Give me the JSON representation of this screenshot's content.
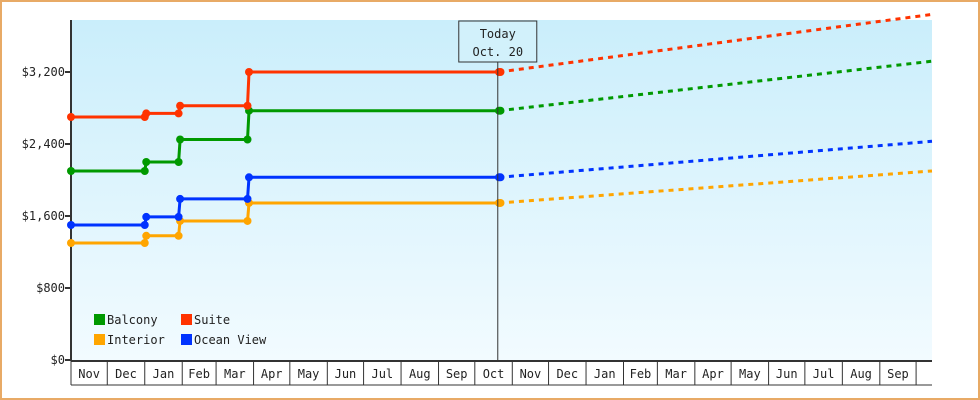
{
  "chart_data": {
    "type": "line",
    "title": "",
    "xlabel": "",
    "ylabel": "",
    "ylim": [
      0,
      3750
    ],
    "y_ticks": [
      "$0",
      "$800",
      "$1,600",
      "$2,400",
      "$3,200"
    ],
    "y_tick_values": [
      0,
      800,
      1600,
      2400,
      3200
    ],
    "x_tick_labels": [
      "Nov",
      "Dec",
      "Jan",
      "Feb",
      "Mar",
      "Apr",
      "May",
      "Jun",
      "Jul",
      "Aug",
      "Sep",
      "Oct",
      "Nov",
      "Dec",
      "Jan",
      "Feb",
      "Mar",
      "Apr",
      "May",
      "Jun",
      "Jul",
      "Aug",
      "Sep"
    ],
    "x_start": "Nov 1",
    "grid": false,
    "legend_position": "bottom-left",
    "today_marker": {
      "line1": "Today",
      "line2": "Oct. 20",
      "date": "Oct 20"
    },
    "series": [
      {
        "name": "Balcony",
        "color": "#009900",
        "points": [
          [
            "Nov 1",
            2100
          ],
          [
            "Jan 1",
            2200
          ],
          [
            "Jan 29",
            2450
          ],
          [
            "Mar 26",
            2770
          ],
          [
            "Oct 20",
            2770
          ]
        ],
        "forecast": [
          [
            "Oct 20",
            2770
          ],
          [
            "Oct 20",
            3320
          ]
        ]
      },
      {
        "name": "Suite",
        "color": "#ff3300",
        "points": [
          [
            "Nov 1",
            2700
          ],
          [
            "Jan 1",
            2740
          ],
          [
            "Jan 29",
            2825
          ],
          [
            "Mar 26",
            3200
          ],
          [
            "Oct 20",
            3200
          ]
        ],
        "forecast": [
          [
            "Oct 20",
            3200
          ],
          [
            "Oct 20",
            3840
          ]
        ]
      },
      {
        "name": "Interior",
        "color": "#ffa500",
        "points": [
          [
            "Nov 1",
            1300
          ],
          [
            "Jan 1",
            1380
          ],
          [
            "Jan 29",
            1545
          ],
          [
            "Mar 26",
            1745
          ],
          [
            "Oct 20",
            1745
          ]
        ],
        "forecast": [
          [
            "Oct 20",
            1745
          ],
          [
            "Oct 20",
            2100
          ]
        ]
      },
      {
        "name": "Ocean View",
        "color": "#0033ff",
        "points": [
          [
            "Nov 1",
            1500
          ],
          [
            "Jan 1",
            1590
          ],
          [
            "Jan 29",
            1790
          ],
          [
            "Mar 26",
            2030
          ],
          [
            "Oct 20",
            2030
          ]
        ],
        "forecast": [
          [
            "Oct 20",
            2030
          ],
          [
            "Oct 20",
            2430
          ]
        ]
      }
    ]
  }
}
